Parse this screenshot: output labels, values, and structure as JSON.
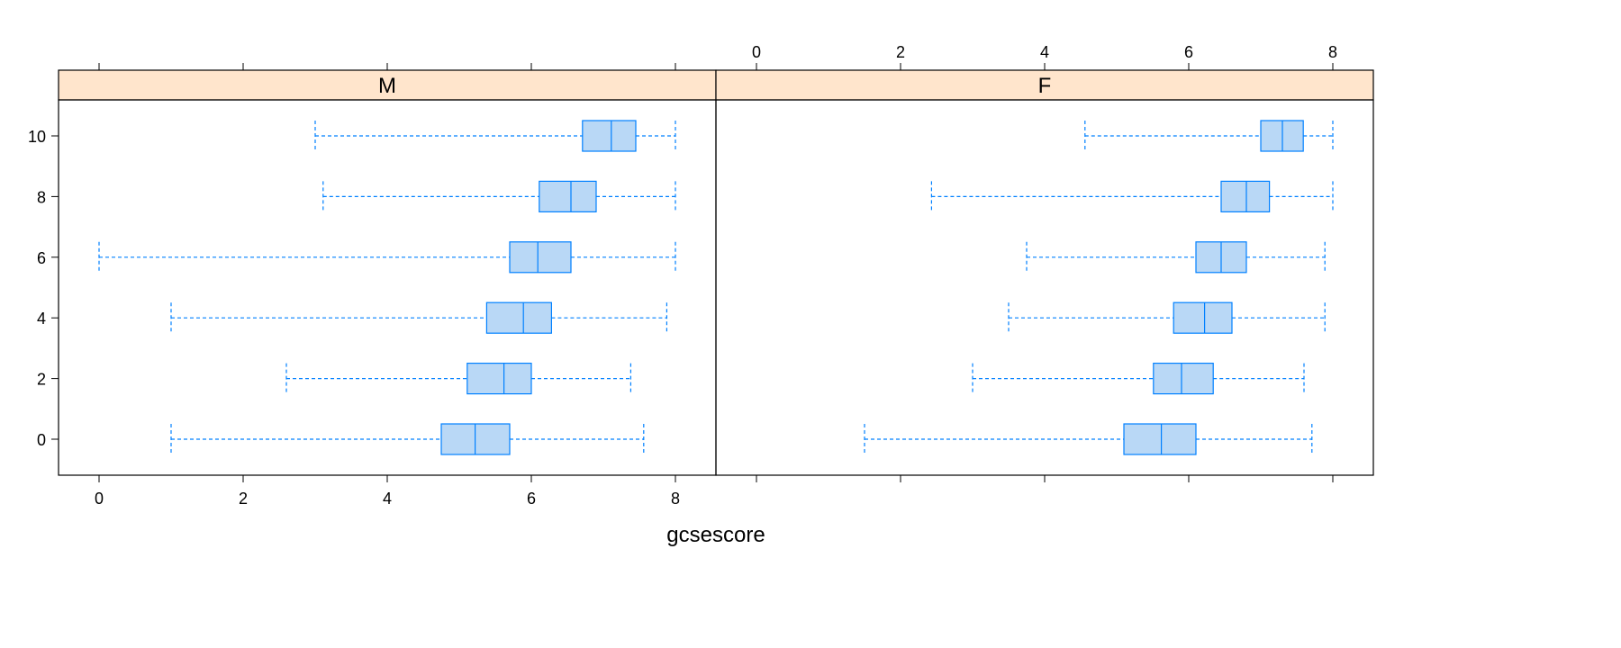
{
  "chart_data": {
    "type": "box",
    "title": "",
    "xlabel": "gcsescore",
    "ylabel": "",
    "xlim": [
      -0.55,
      8.55
    ],
    "x_ticks": [
      0,
      2,
      4,
      6,
      8
    ],
    "categories": [
      "0",
      "2",
      "4",
      "6",
      "8",
      "10"
    ],
    "grid": false,
    "colors": {
      "box_fill": "#b9d8f6",
      "box_stroke": "#0080ff",
      "strip": "#ffe5cc"
    },
    "panels": [
      {
        "strip": "M",
        "boxes": [
          {
            "category": "0",
            "min": 1.0,
            "q1": 4.75,
            "median": 5.22,
            "q3": 5.7,
            "max": 7.56
          },
          {
            "category": "2",
            "min": 2.6,
            "q1": 5.11,
            "median": 5.62,
            "q3": 6.0,
            "max": 7.38
          },
          {
            "category": "4",
            "min": 1.0,
            "q1": 5.38,
            "median": 5.89,
            "q3": 6.28,
            "max": 7.88
          },
          {
            "category": "6",
            "min": 0.0,
            "q1": 5.7,
            "median": 6.09,
            "q3": 6.55,
            "max": 8.0
          },
          {
            "category": "8",
            "min": 3.11,
            "q1": 6.11,
            "median": 6.55,
            "q3": 6.9,
            "max": 8.0
          },
          {
            "category": "10",
            "min": 3.0,
            "q1": 6.71,
            "median": 7.11,
            "q3": 7.45,
            "max": 8.0
          }
        ]
      },
      {
        "strip": "F",
        "boxes": [
          {
            "category": "0",
            "min": 1.5,
            "q1": 5.1,
            "median": 5.62,
            "q3": 6.1,
            "max": 7.71
          },
          {
            "category": "2",
            "min": 3.0,
            "q1": 5.51,
            "median": 5.9,
            "q3": 6.34,
            "max": 7.6
          },
          {
            "category": "4",
            "min": 3.5,
            "q1": 5.79,
            "median": 6.22,
            "q3": 6.6,
            "max": 7.89
          },
          {
            "category": "6",
            "min": 3.75,
            "q1": 6.1,
            "median": 6.45,
            "q3": 6.8,
            "max": 7.89
          },
          {
            "category": "8",
            "min": 2.43,
            "q1": 6.45,
            "median": 6.8,
            "q3": 7.12,
            "max": 8.0
          },
          {
            "category": "10",
            "min": 4.56,
            "q1": 7.0,
            "median": 7.3,
            "q3": 7.59,
            "max": 8.0
          }
        ]
      }
    ]
  }
}
